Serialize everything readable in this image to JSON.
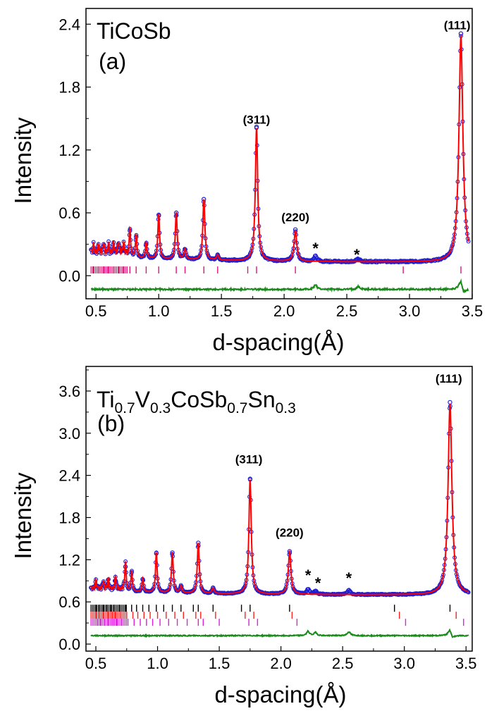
{
  "colors": {
    "observed": "#1f1fd2",
    "calculated": "#ff0000",
    "difference": "#1a8a1a",
    "reflections_main": "#e0147a",
    "reflections_black": "#000000",
    "reflections_red": "#ff2020",
    "reflections_magenta": "#e01ee0"
  },
  "chart_data": [
    {
      "type": "line",
      "panel_label": "(a)",
      "compound": "TiCoSb",
      "xlabel": "d-spacing(Å)",
      "ylabel": "Intensity",
      "xlim": [
        0.42,
        3.5
      ],
      "ylim": [
        -0.22,
        2.55
      ],
      "xticks": [
        "0.5",
        "1.0",
        "1.5",
        "2.0",
        "2.5",
        "3.0",
        "3.5"
      ],
      "yticks": [
        "0.0",
        "0.6",
        "1.2",
        "1.8",
        "2.4"
      ],
      "background": 0.13,
      "peaks": [
        {
          "d": 0.48,
          "h": 0.08
        },
        {
          "d": 0.52,
          "h": 0.08
        },
        {
          "d": 0.56,
          "h": 0.1
        },
        {
          "d": 0.6,
          "h": 0.09
        },
        {
          "d": 0.64,
          "h": 0.1
        },
        {
          "d": 0.68,
          "h": 0.12
        },
        {
          "d": 0.72,
          "h": 0.1
        },
        {
          "d": 0.77,
          "h": 0.28
        },
        {
          "d": 0.82,
          "h": 0.22
        },
        {
          "d": 0.9,
          "h": 0.15
        },
        {
          "d": 1.0,
          "h": 0.43
        },
        {
          "d": 1.14,
          "h": 0.45
        },
        {
          "d": 1.21,
          "h": 0.1
        },
        {
          "d": 1.36,
          "h": 0.58
        },
        {
          "d": 1.47,
          "h": 0.05
        },
        {
          "d": 1.78,
          "h": 1.27
        },
        {
          "d": 2.09,
          "h": 0.29
        },
        {
          "d": 3.41,
          "h": 2.16
        }
      ],
      "impurity_peaks": [
        {
          "d": 2.25,
          "h": 0.05
        },
        {
          "d": 2.59,
          "h": 0.03
        }
      ],
      "peak_labels": [
        {
          "text": "(311)",
          "d": 1.78,
          "y": 1.45
        },
        {
          "text": "(220)",
          "d": 2.09,
          "y": 0.52
        },
        {
          "text": "(111)",
          "d": 3.38,
          "y": 2.35
        }
      ],
      "stars": [
        {
          "d": 2.25,
          "y": 0.21
        },
        {
          "d": 2.58,
          "y": 0.15
        }
      ],
      "reflection_rows": [
        {
          "y": 0.055,
          "color_key": "reflections_main",
          "d": [
            1.47,
            1.36,
            1.21,
            1.14,
            1.0,
            0.9,
            0.82,
            0.77,
            0.72,
            0.68,
            0.64,
            0.6,
            0.56,
            0.52,
            0.48,
            1.71,
            1.78,
            2.09,
            2.95,
            3.41
          ]
        }
      ],
      "difference_baseline": -0.13
    },
    {
      "type": "line",
      "panel_label": "(b)",
      "compound": {
        "parts": [
          "Ti",
          "0.7",
          "V",
          "0.3",
          "CoSb",
          "0.7",
          "Sn",
          "0.3"
        ]
      },
      "xlabel": "d-spacing(Å)",
      "ylabel": "Intensity",
      "xlim": [
        0.42,
        3.55
      ],
      "ylim": [
        -0.1,
        3.95
      ],
      "xticks": [
        "0.5",
        "1.0",
        "1.5",
        "2.0",
        "2.5",
        "3.0",
        "3.5"
      ],
      "yticks": [
        "0.0",
        "0.6",
        "1.2",
        "1.8",
        "2.4",
        "3.0",
        "3.6"
      ],
      "background": 0.7,
      "peaks": [
        {
          "d": 0.5,
          "h": 0.12
        },
        {
          "d": 0.56,
          "h": 0.12
        },
        {
          "d": 0.6,
          "h": 0.14
        },
        {
          "d": 0.66,
          "h": 0.18
        },
        {
          "d": 0.74,
          "h": 0.38
        },
        {
          "d": 0.79,
          "h": 0.3
        },
        {
          "d": 0.88,
          "h": 0.2
        },
        {
          "d": 0.99,
          "h": 0.57
        },
        {
          "d": 1.12,
          "h": 0.58
        },
        {
          "d": 1.19,
          "h": 0.1
        },
        {
          "d": 1.33,
          "h": 0.72
        },
        {
          "d": 1.45,
          "h": 0.08
        },
        {
          "d": 1.75,
          "h": 1.63
        },
        {
          "d": 2.07,
          "h": 0.6
        },
        {
          "d": 3.37,
          "h": 2.72
        }
      ],
      "impurity_peaks": [
        {
          "d": 2.22,
          "h": 0.07
        },
        {
          "d": 2.28,
          "h": 0.05
        },
        {
          "d": 2.55,
          "h": 0.06
        }
      ],
      "peak_labels": [
        {
          "text": "(311)",
          "d": 1.74,
          "y": 2.57
        },
        {
          "text": "(220)",
          "d": 2.07,
          "y": 1.53
        },
        {
          "text": "(111)",
          "d": 3.36,
          "y": 3.72
        }
      ],
      "stars": [
        {
          "d": 2.22,
          "y": 0.9
        },
        {
          "d": 2.3,
          "y": 0.79
        },
        {
          "d": 2.55,
          "y": 0.86
        }
      ],
      "reflection_rows": [
        {
          "y": 0.51,
          "color_key": "reflections_black",
          "d": [
            0.5,
            0.53,
            0.56,
            0.59,
            0.62,
            0.65,
            0.69,
            0.74,
            0.79,
            0.83,
            0.88,
            0.93,
            0.99,
            1.05,
            1.12,
            1.19,
            1.29,
            1.33,
            1.45,
            1.68,
            1.75,
            2.07,
            2.92,
            3.37
          ]
        },
        {
          "y": 0.41,
          "color_key": "reflections_red",
          "d": [
            0.5,
            0.53,
            0.56,
            0.6,
            0.63,
            0.66,
            0.7,
            0.75,
            0.8,
            0.84,
            0.89,
            0.94,
            1.0,
            1.07,
            1.14,
            1.21,
            1.31,
            1.35,
            1.47,
            1.71,
            1.78,
            2.09,
            2.96,
            3.42
          ]
        },
        {
          "y": 0.31,
          "color_key": "reflections_magenta",
          "d": [
            0.51,
            0.54,
            0.57,
            0.6,
            0.64,
            0.67,
            0.71,
            0.76,
            0.81,
            0.86,
            0.91,
            0.96,
            1.02,
            1.09,
            1.16,
            1.24,
            1.33,
            1.37,
            1.5,
            1.74,
            1.81,
            2.13,
            3.01,
            3.48
          ]
        }
      ],
      "difference_baseline": 0.12
    }
  ]
}
